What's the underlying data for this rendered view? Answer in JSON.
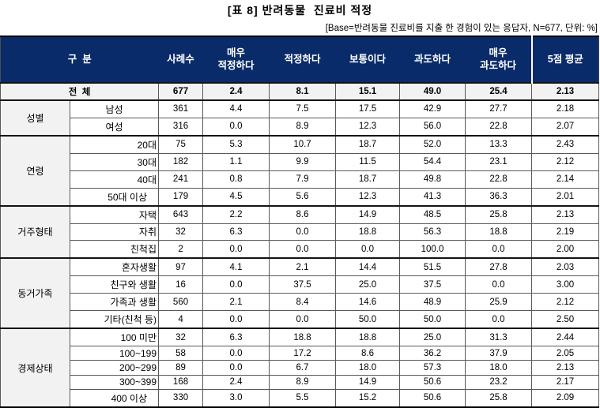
{
  "title": "[표 8] 반려동물  진료비 적정",
  "subtitle": "[Base=반려동물 진료비를 지출 한 경험이 있는 응답자, N=677, 단위: %]",
  "colors": {
    "header_bg": "#0A2B69",
    "header_text": "#FFFFFF",
    "shaded_cell": "#F2F2F2",
    "grid_line": "#595959",
    "strong_line": "#141414"
  },
  "table": {
    "headers": [
      "구  분",
      "사례수",
      "매우\n적정하다",
      "적정하다",
      "보통이다",
      "과도하다",
      "매우\n과도하다",
      "5점 평균"
    ],
    "total_row": {
      "label": "전  체",
      "values": [
        "677",
        "2.4",
        "8.1",
        "15.1",
        "49.0",
        "25.4",
        "2.13"
      ]
    },
    "sections": [
      {
        "group": "성별",
        "rows": [
          {
            "label": "남성",
            "align": "center",
            "values": [
              "361",
              "4.4",
              "7.5",
              "17.5",
              "42.9",
              "27.7",
              "2.18"
            ]
          },
          {
            "label": "여성",
            "align": "center",
            "values": [
              "316",
              "0.0",
              "8.9",
              "12.3",
              "56.0",
              "22.8",
              "2.07"
            ]
          }
        ]
      },
      {
        "group": "연령",
        "rows": [
          {
            "label": "20대",
            "align": "right",
            "values": [
              "75",
              "5.3",
              "10.7",
              "18.7",
              "52.0",
              "13.3",
              "2.43"
            ]
          },
          {
            "label": "30대",
            "align": "right",
            "values": [
              "182",
              "1.1",
              "9.9",
              "11.5",
              "54.4",
              "23.1",
              "2.12"
            ]
          },
          {
            "label": "40대",
            "align": "right",
            "values": [
              "241",
              "0.8",
              "7.9",
              "18.7",
              "49.8",
              "22.8",
              "2.14"
            ]
          },
          {
            "label": "50대 이상",
            "align": "pad",
            "values": [
              "179",
              "4.5",
              "5.6",
              "12.3",
              "41.3",
              "36.3",
              "2.01"
            ]
          }
        ]
      },
      {
        "group": "거주형태",
        "rows": [
          {
            "label": "자택",
            "align": "right",
            "values": [
              "643",
              "2.2",
              "8.6",
              "14.9",
              "48.5",
              "25.8",
              "2.13"
            ]
          },
          {
            "label": "자취",
            "align": "right",
            "values": [
              "32",
              "6.3",
              "0.0",
              "18.8",
              "56.3",
              "18.8",
              "2.19"
            ]
          },
          {
            "label": "친척집",
            "align": "right",
            "values": [
              "2",
              "0.0",
              "0.0",
              "0.0",
              "100.0",
              "0.0",
              "2.00"
            ]
          }
        ]
      },
      {
        "group": "동거가족",
        "rows": [
          {
            "label": "혼자생활",
            "align": "right",
            "values": [
              "97",
              "4.1",
              "2.1",
              "14.4",
              "51.5",
              "27.8",
              "2.03"
            ]
          },
          {
            "label": "친구와 생활",
            "align": "right",
            "values": [
              "16",
              "0.0",
              "37.5",
              "25.0",
              "37.5",
              "0.0",
              "3.00"
            ]
          },
          {
            "label": "가족과 생활",
            "align": "right",
            "values": [
              "560",
              "2.1",
              "8.4",
              "14.6",
              "48.9",
              "25.9",
              "2.12"
            ]
          },
          {
            "label": "기타(친척 등)",
            "align": "right",
            "values": [
              "4",
              "0.0",
              "0.0",
              "50.0",
              "50.0",
              "0.0",
              "2.50"
            ]
          }
        ]
      },
      {
        "group": "경제상태",
        "rows": [
          {
            "label": "100 미만",
            "align": "right",
            "values": [
              "32",
              "6.3",
              "18.8",
              "18.8",
              "25.0",
              "31.3",
              "2.44"
            ]
          },
          {
            "label": "100~199",
            "align": "right",
            "values": [
              "58",
              "0.0",
              "17.2",
              "8.6",
              "36.2",
              "37.9",
              "2.05"
            ]
          },
          {
            "label": "200~299",
            "align": "right",
            "values": [
              "89",
              "0.0",
              "6.7",
              "18.0",
              "57.3",
              "18.0",
              "2.13"
            ]
          },
          {
            "label": "300~399",
            "align": "right",
            "values": [
              "168",
              "2.4",
              "8.9",
              "14.9",
              "50.6",
              "23.2",
              "2.17"
            ]
          },
          {
            "label": "400 이상",
            "align": "pad",
            "values": [
              "330",
              "3.0",
              "5.5",
              "15.2",
              "50.6",
              "25.8",
              "2.09"
            ]
          }
        ]
      }
    ]
  }
}
